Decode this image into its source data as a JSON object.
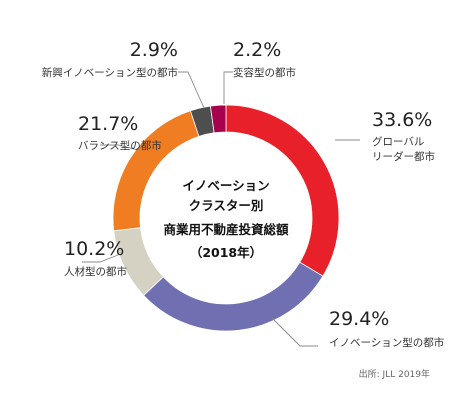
{
  "chart_data": {
    "type": "pie",
    "donut": true,
    "title_lines": [
      "イノベーション",
      "クラスター別",
      "商業用不動産投資総額",
      "（2018年）"
    ],
    "series": [
      {
        "name": "グローバル\nリーダー都市",
        "label_lines": [
          "グローバル",
          "リーダー都市"
        ],
        "value": 33.6,
        "label": "33.6%",
        "color": "#e8202a"
      },
      {
        "name": "イノベーション型の都市",
        "label_lines": [
          "イノベーション型の都市"
        ],
        "value": 29.4,
        "label": "29.4%",
        "color": "#6f6fb2"
      },
      {
        "name": "人材型の都市",
        "label_lines": [
          "人材型の都市"
        ],
        "value": 10.2,
        "label": "10.2%",
        "color": "#d6d2c3"
      },
      {
        "name": "バランス型の都市",
        "label_lines": [
          "バランス型の都市"
        ],
        "value": 21.7,
        "label": "21.7%",
        "color": "#f07d22"
      },
      {
        "name": "新興イノベーション型の都市",
        "label_lines": [
          "新興イノベーション型の都市"
        ],
        "value": 2.9,
        "label": "2.9%",
        "color": "#4e4e4e"
      },
      {
        "name": "変容型の都市",
        "label_lines": [
          "変容型の都市"
        ],
        "value": 2.2,
        "label": "2.2%",
        "color": "#a6004f"
      }
    ],
    "source": "出所: JLL 2019年"
  }
}
